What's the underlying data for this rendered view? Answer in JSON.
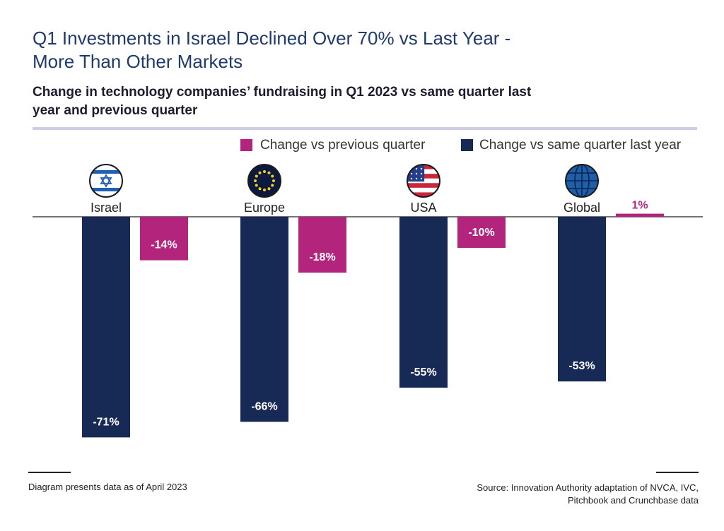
{
  "title_line1": "Q1 Investments in Israel Declined Over 70% vs Last Year -",
  "title_line2": "More Than Other Markets",
  "subtitle_line1": "Change in technology companies’ fundraising in Q1 2023 vs same quarter last",
  "subtitle_line2": "year and previous quarter",
  "legend": {
    "prev_label": "Change vs previous quarter",
    "yoy_label": "Change vs same quarter last year"
  },
  "colors": {
    "prev": "#b3247c",
    "yoy": "#172a55",
    "title": "#1f3a6b",
    "rule": "#cfcde6"
  },
  "footer": {
    "note": "Diagram presents data as of April 2023",
    "source_line1": "Source: Innovation Authority adaptation of NVCA, IVC,",
    "source_line2": "Pitchbook and Crunchbase data"
  },
  "chart_data": {
    "type": "bar",
    "categories": [
      "Israel",
      "Europe",
      "USA",
      "Global"
    ],
    "icons": [
      "israel-flag-icon",
      "eu-flag-icon",
      "usa-flag-icon",
      "globe-icon"
    ],
    "series": [
      {
        "name": "Change vs same quarter last year",
        "values": [
          -71,
          -66,
          -55,
          -53
        ],
        "labels": [
          "-71%",
          "-66%",
          "-55%",
          "-53%"
        ]
      },
      {
        "name": "Change vs previous quarter",
        "values": [
          -14,
          -18,
          -10,
          1
        ],
        "labels": [
          "-14%",
          "-18%",
          "-10%",
          "1%"
        ]
      }
    ],
    "ylim": [
      -71,
      1
    ],
    "grid": false,
    "legend_position": "top-right"
  }
}
